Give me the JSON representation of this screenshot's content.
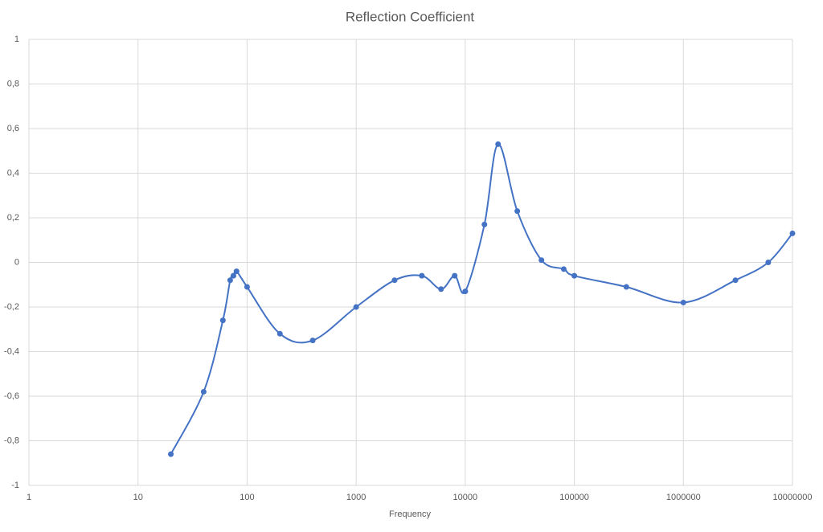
{
  "chart_data": {
    "type": "line",
    "title": "Reflection Coefficient",
    "x_label": "Frequency",
    "x": [
      20,
      40,
      60,
      70,
      75,
      80,
      100,
      200,
      400,
      1000,
      2250,
      4000,
      6000,
      8000,
      10000,
      15000,
      20000,
      30000,
      50000,
      80000,
      100000,
      300000,
      1000000,
      3000000,
      6000000,
      10000000
    ],
    "series": [
      {
        "color": "#4472c4",
        "values": [
          -0.86,
          -0.58,
          -0.26,
          -0.08,
          -0.06,
          -0.04,
          -0.11,
          -0.32,
          -0.35,
          -0.2,
          -0.08,
          -0.06,
          -0.12,
          -0.06,
          -0.13,
          0.17,
          0.53,
          0.23,
          0.01,
          -0.03,
          -0.06,
          -0.11,
          -0.18,
          -0.08,
          0,
          0.13
        ]
      }
    ],
    "xscale": "log",
    "smooth": true,
    "markers": true,
    "grid": true,
    "xlim": [
      1,
      10000000
    ],
    "xticks": [
      1,
      10,
      100,
      1000,
      10000,
      100000,
      1000000,
      10000000
    ],
    "ylim": [
      -1,
      1
    ],
    "yticks": [
      -1,
      {
        "value": -0.8,
        "label": "-0,8"
      },
      {
        "value": -0.6,
        "label": "-0,6"
      },
      {
        "value": -0.4,
        "label": "-0,4"
      },
      {
        "value": -0.2,
        "label": "-0,2"
      },
      0,
      {
        "value": 0.2,
        "label": "0,2"
      },
      {
        "value": 0.4,
        "label": "0,4"
      },
      {
        "value": 0.6,
        "label": "0,6"
      },
      {
        "value": 0.8,
        "label": "0,8"
      },
      1
    ]
  }
}
